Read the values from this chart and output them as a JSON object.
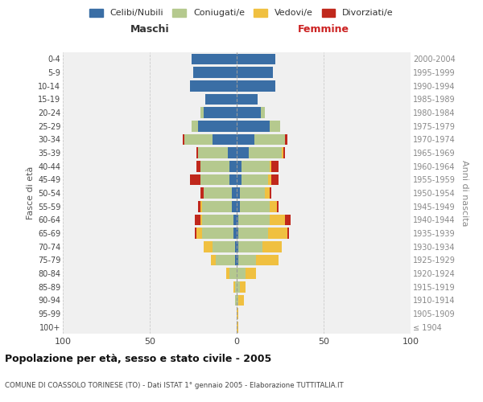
{
  "age_groups": [
    "100+",
    "95-99",
    "90-94",
    "85-89",
    "80-84",
    "75-79",
    "70-74",
    "65-69",
    "60-64",
    "55-59",
    "50-54",
    "45-49",
    "40-44",
    "35-39",
    "30-34",
    "25-29",
    "20-24",
    "15-19",
    "10-14",
    "5-9",
    "0-4"
  ],
  "birth_years": [
    "≤ 1904",
    "1905-1909",
    "1910-1914",
    "1915-1919",
    "1920-1924",
    "1925-1929",
    "1930-1934",
    "1935-1939",
    "1940-1944",
    "1945-1949",
    "1950-1954",
    "1955-1959",
    "1960-1964",
    "1965-1969",
    "1970-1974",
    "1975-1979",
    "1980-1984",
    "1985-1989",
    "1990-1994",
    "1995-1999",
    "2000-2004"
  ],
  "male": {
    "celibi": [
      0,
      0,
      0,
      0,
      0,
      1,
      1,
      2,
      2,
      3,
      3,
      4,
      4,
      5,
      14,
      22,
      19,
      18,
      27,
      25,
      26
    ],
    "coniugati": [
      0,
      0,
      1,
      1,
      4,
      11,
      13,
      18,
      18,
      17,
      16,
      17,
      17,
      17,
      16,
      4,
      2,
      0,
      0,
      0,
      0
    ],
    "vedovi": [
      0,
      0,
      0,
      1,
      2,
      3,
      5,
      3,
      1,
      1,
      0,
      0,
      0,
      0,
      0,
      0,
      0,
      0,
      0,
      0,
      0
    ],
    "divorziati": [
      0,
      0,
      0,
      0,
      0,
      0,
      0,
      1,
      3,
      1,
      2,
      6,
      2,
      1,
      1,
      0,
      0,
      0,
      0,
      0,
      0
    ]
  },
  "female": {
    "nubili": [
      0,
      0,
      0,
      0,
      0,
      1,
      1,
      1,
      1,
      2,
      2,
      3,
      3,
      7,
      10,
      19,
      14,
      12,
      22,
      21,
      22
    ],
    "coniugate": [
      0,
      0,
      1,
      2,
      5,
      10,
      14,
      17,
      18,
      17,
      14,
      15,
      16,
      19,
      18,
      6,
      2,
      0,
      0,
      0,
      0
    ],
    "vedove": [
      1,
      1,
      3,
      3,
      6,
      13,
      11,
      11,
      9,
      4,
      3,
      2,
      1,
      1,
      0,
      0,
      0,
      0,
      0,
      0,
      0
    ],
    "divorziate": [
      0,
      0,
      0,
      0,
      0,
      0,
      0,
      1,
      3,
      1,
      1,
      4,
      4,
      1,
      1,
      0,
      0,
      0,
      0,
      0,
      0
    ]
  },
  "colors": {
    "celibi": "#3a6ea5",
    "coniugati": "#b5c98e",
    "vedovi": "#f0c040",
    "divorziati": "#c0281c"
  },
  "xlim": 100,
  "title": "Popolazione per età, sesso e stato civile - 2005",
  "subtitle": "COMUNE DI COASSOLO TORINESE (TO) - Dati ISTAT 1° gennaio 2005 - Elaborazione TUTTITALIA.IT",
  "ylabel_left": "Fasce di età",
  "ylabel_right": "Anni di nascita",
  "xlabel_left": "Maschi",
  "xlabel_right": "Femmine",
  "legend_labels": [
    "Celibi/Nubili",
    "Coniugati/e",
    "Vedovi/e",
    "Divorziati/e"
  ],
  "background_color": "#ffffff",
  "plot_bg_color": "#f0f0f0",
  "grid_color": "#cccccc"
}
